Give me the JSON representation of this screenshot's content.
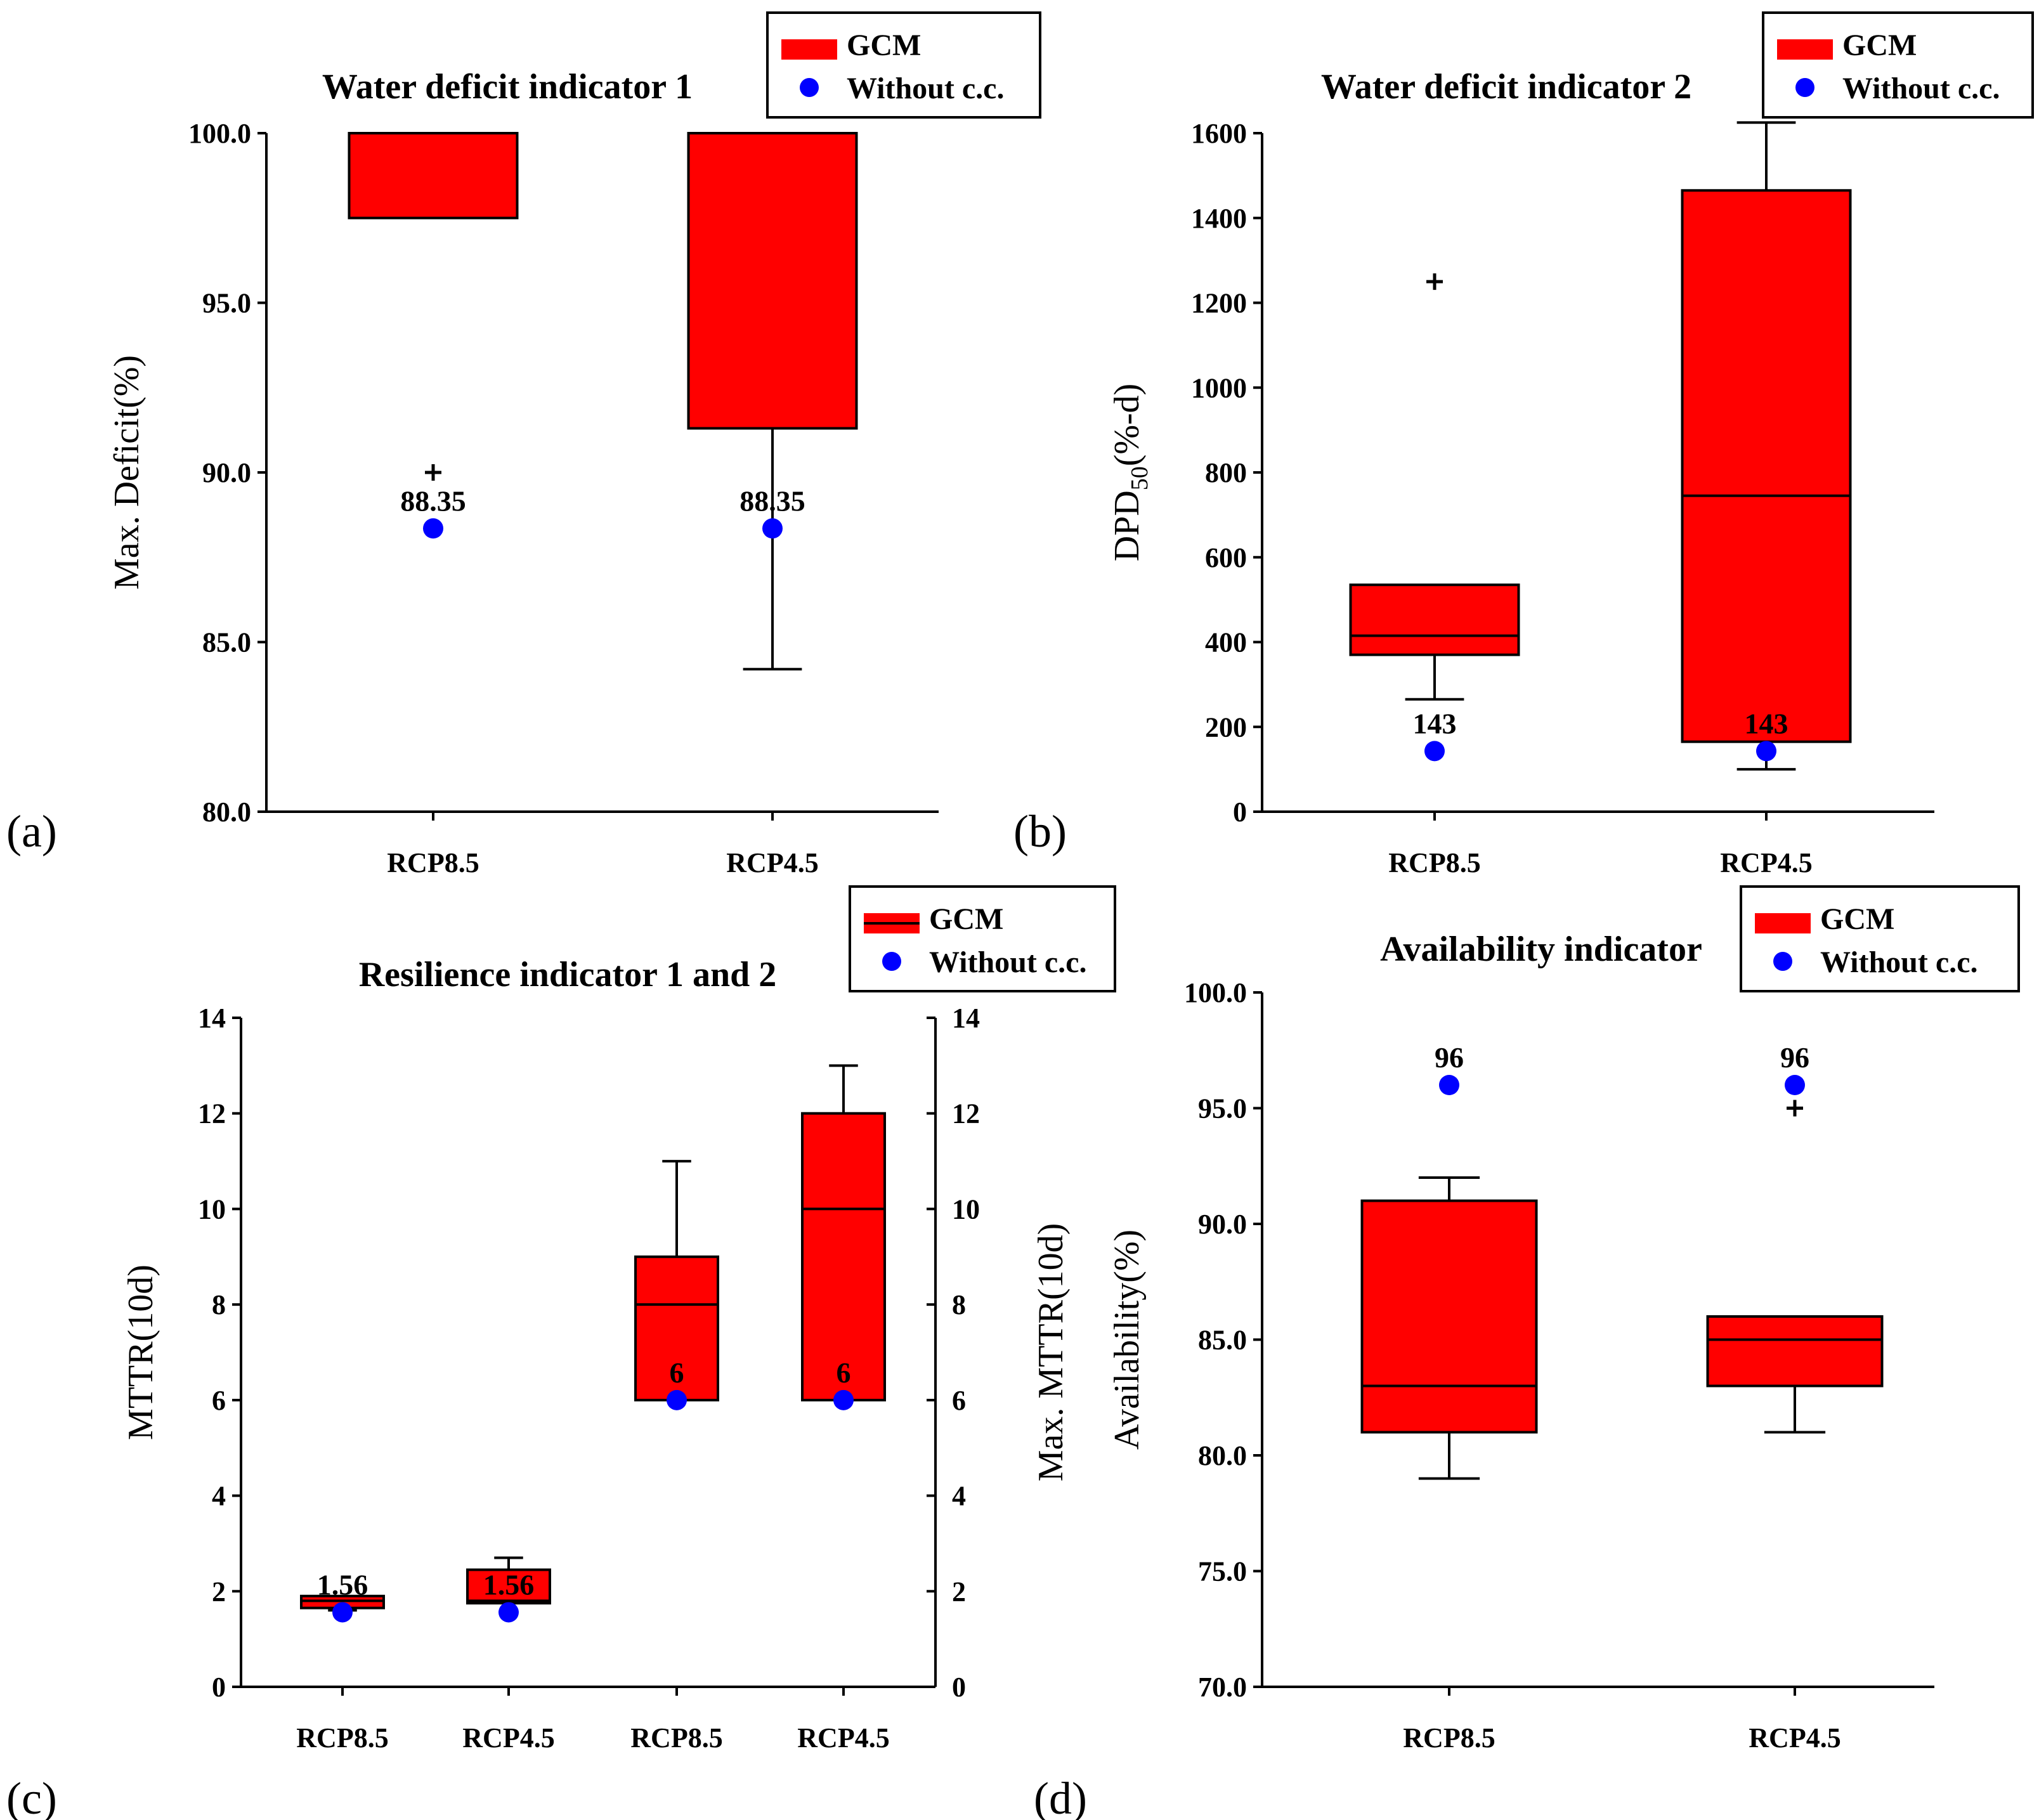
{
  "legend": {
    "gcm": "GCM",
    "without": "Without c.c."
  },
  "colors": {
    "box": "#ff0000",
    "dot": "#0000ff",
    "line": "#000000"
  },
  "chart_data": [
    {
      "panel": "(a)",
      "type": "box",
      "title": "Water deficit indicator 1",
      "ylabel": "Max. Deficit(%)",
      "ylim": [
        80,
        100
      ],
      "yticks": [
        "100.0",
        "95.0",
        "90.0",
        "85.0",
        "80.0"
      ],
      "categories": [
        "RCP8.5",
        "RCP4.5"
      ],
      "boxes": [
        {
          "category": "RCP8.5",
          "min": 97.5,
          "q1": 97.5,
          "median": 100,
          "q3": 100,
          "max": 100,
          "outliers": [
            90
          ],
          "without_cc": 88.35,
          "label": "88.35"
        },
        {
          "category": "RCP4.5",
          "min": 84.2,
          "q1": 91.3,
          "median": 100,
          "q3": 100,
          "max": 100,
          "outliers": [],
          "without_cc": 88.35,
          "label": "88.35"
        }
      ]
    },
    {
      "panel": "(b)",
      "type": "box",
      "title": "Water deficit indicator 2",
      "ylabel": "DPD",
      "ylabel_sub": "50",
      "ylabel_tail": "(%-d)",
      "ylim": [
        0,
        1600
      ],
      "yticks": [
        "1600",
        "1400",
        "1200",
        "1000",
        "800",
        "600",
        "400",
        "200",
        "0"
      ],
      "categories": [
        "RCP8.5",
        "RCP4.5"
      ],
      "boxes": [
        {
          "category": "RCP8.5",
          "min": 265,
          "q1": 370,
          "median": 415,
          "q3": 535,
          "max": 535,
          "outliers": [
            1250
          ],
          "without_cc": 143,
          "label": "143"
        },
        {
          "category": "RCP4.5",
          "min": 100,
          "q1": 165,
          "median": 745,
          "q3": 1465,
          "max": 1625,
          "outliers": [],
          "without_cc": 143,
          "label": "143"
        }
      ]
    },
    {
      "panel": "(c)",
      "type": "box",
      "title": "Resilience indicator 1 and 2",
      "ylabel": "MTTR(10d)",
      "ylabel_right": "Max. MTTR(10d)",
      "ylim": [
        0,
        14
      ],
      "yticks": [
        "14",
        "12",
        "10",
        "8",
        "6",
        "4",
        "2",
        "0"
      ],
      "categories": [
        "RCP8.5",
        "RCP4.5",
        "RCP8.5",
        "RCP4.5"
      ],
      "boxes": [
        {
          "category": "RCP8.5",
          "min": 1.6,
          "q1": 1.65,
          "median": 1.8,
          "q3": 1.9,
          "max": 1.9,
          "outliers": [],
          "without_cc": 1.56,
          "label": "1.56"
        },
        {
          "category": "RCP4.5",
          "min": 1.75,
          "q1": 1.75,
          "median": 1.8,
          "q3": 2.45,
          "max": 2.7,
          "outliers": [],
          "without_cc": 1.56,
          "label": "1.56"
        },
        {
          "category": "RCP8.5",
          "min": 6,
          "q1": 6,
          "median": 8,
          "q3": 9,
          "max": 11,
          "outliers": [],
          "without_cc": 6,
          "label": "6"
        },
        {
          "category": "RCP4.5",
          "min": 6,
          "q1": 6,
          "median": 10,
          "q3": 12,
          "max": 13,
          "outliers": [],
          "without_cc": 6,
          "label": "6"
        }
      ]
    },
    {
      "panel": "(d)",
      "type": "box",
      "title": "Availability indicator",
      "ylabel": "Availability(%)",
      "ylim": [
        70,
        100
      ],
      "yticks": [
        "100.0",
        "95.0",
        "90.0",
        "85.0",
        "80.0",
        "75.0",
        "70.0"
      ],
      "categories": [
        "RCP8.5",
        "RCP4.5"
      ],
      "boxes": [
        {
          "category": "RCP8.5",
          "min": 79,
          "q1": 81,
          "median": 83,
          "q3": 91,
          "max": 92,
          "outliers": [],
          "without_cc": 96,
          "label": "96"
        },
        {
          "category": "RCP4.5",
          "min": 81,
          "q1": 83,
          "median": 85,
          "q3": 86,
          "max": 86,
          "outliers": [
            95
          ],
          "without_cc": 96,
          "label": "96"
        }
      ]
    }
  ]
}
